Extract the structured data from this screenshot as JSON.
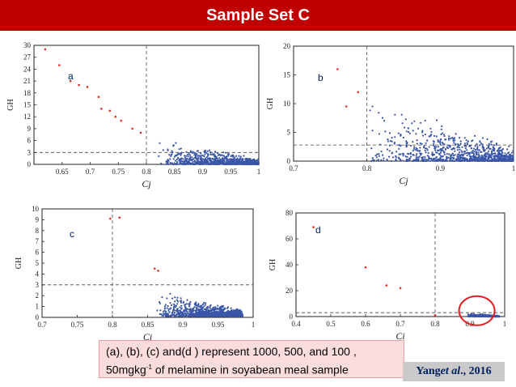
{
  "slide": {
    "title": "Sample Set C",
    "caption_line1": "(a), (b), (c) and(d ) represent 1000, 500, and 100 ,",
    "caption_line2_pre": "50mgkg",
    "caption_sup": "-1",
    "caption_line2_post": " of melamine in soyabean meal sample",
    "citation_prefix": "Yang ",
    "citation_italic": "et al",
    "citation_suffix": "., 2016",
    "accent_color": "#c00000",
    "point_color": "#3a56a8",
    "red_point_color": "#e03020",
    "highlight_circle_color": "#e02020"
  },
  "chart_data": [
    {
      "type": "scatter",
      "panel_label": "a",
      "xlabel": "Cj",
      "ylabel": "GH",
      "xlim": [
        0.6,
        1.0
      ],
      "ylim": [
        0,
        30
      ],
      "xticks": [
        "0.65",
        "0.7",
        "0.75",
        "0.8",
        "0.85",
        "0.9",
        "0.95",
        "1"
      ],
      "xtick_values": [
        0.65,
        0.7,
        0.75,
        0.8,
        0.85,
        0.9,
        0.95,
        1.0
      ],
      "yticks": [
        "0",
        "3",
        "6",
        "9",
        "12",
        "15",
        "18",
        "21",
        "24",
        "27",
        "30"
      ],
      "ytick_values": [
        0,
        3,
        6,
        9,
        12,
        15,
        18,
        21,
        24,
        27,
        30
      ],
      "threshold_x": 0.8,
      "threshold_y": 3,
      "red_points": [
        [
          0.62,
          29
        ],
        [
          0.645,
          25
        ],
        [
          0.665,
          21
        ],
        [
          0.68,
          20
        ],
        [
          0.695,
          19.5
        ],
        [
          0.715,
          17
        ],
        [
          0.72,
          14
        ],
        [
          0.735,
          13.5
        ],
        [
          0.745,
          12
        ],
        [
          0.755,
          11
        ],
        [
          0.775,
          9
        ],
        [
          0.79,
          8
        ]
      ],
      "cluster": {
        "x_range": [
          0.82,
          1.0
        ],
        "y_range": [
          0,
          7
        ],
        "count": 900,
        "seed": 11
      }
    },
    {
      "type": "scatter",
      "panel_label": "b",
      "xlabel": "Cj",
      "ylabel": "GH",
      "xlim": [
        0.7,
        1.0
      ],
      "ylim": [
        0,
        20
      ],
      "xticks": [
        "0.7",
        "0.8",
        "0.9",
        "1"
      ],
      "xtick_values": [
        0.7,
        0.8,
        0.9,
        1.0
      ],
      "yticks": [
        "0",
        "5",
        "10",
        "15",
        "20"
      ],
      "ytick_values": [
        0,
        5,
        10,
        15,
        20
      ],
      "threshold_x": 0.8,
      "threshold_y": 2.8,
      "red_points": [
        [
          0.76,
          16
        ],
        [
          0.772,
          9.5
        ],
        [
          0.788,
          12
        ]
      ],
      "cluster": {
        "x_range": [
          0.8,
          1.0
        ],
        "y_range": [
          0,
          12
        ],
        "count": 900,
        "seed": 23
      }
    },
    {
      "type": "scatter",
      "panel_label": "c",
      "xlabel": "Ci",
      "ylabel": "GH",
      "xlim": [
        0.7,
        1.0
      ],
      "ylim": [
        0,
        10
      ],
      "xticks": [
        "0.7",
        "0.75",
        "0.8",
        "0.85",
        "0.9",
        "0.95",
        "1"
      ],
      "xtick_values": [
        0.7,
        0.75,
        0.8,
        0.85,
        0.9,
        0.95,
        1.0
      ],
      "yticks": [
        "0",
        "1",
        "2",
        "3",
        "4",
        "5",
        "6",
        "7",
        "8",
        "9",
        "10"
      ],
      "ytick_values": [
        0,
        1,
        2,
        3,
        4,
        5,
        6,
        7,
        8,
        9,
        10
      ],
      "threshold_x": 0.8,
      "threshold_y": 3,
      "red_points": [
        [
          0.797,
          9.1
        ],
        [
          0.81,
          9.2
        ],
        [
          0.86,
          4.5
        ],
        [
          0.865,
          4.3
        ]
      ],
      "cluster": {
        "x_range": [
          0.86,
          0.985
        ],
        "y_range": [
          0.1,
          2.8
        ],
        "count": 1100,
        "seed": 37
      }
    },
    {
      "type": "scatter",
      "panel_label": "d",
      "xlabel": "Ci",
      "ylabel": "GH",
      "xlim": [
        0.4,
        1.0
      ],
      "ylim": [
        0,
        80
      ],
      "xticks": [
        "0.4",
        "0.5",
        "0.6",
        "0.7",
        "0.8",
        "0.9",
        "1"
      ],
      "xtick_values": [
        0.4,
        0.5,
        0.6,
        0.7,
        0.8,
        0.9,
        1.0
      ],
      "yticks": [
        "0",
        "20",
        "40",
        "60",
        "80"
      ],
      "ytick_values": [
        0,
        20,
        40,
        60,
        80
      ],
      "threshold_x": 0.8,
      "threshold_y": 3,
      "red_points": [
        [
          0.45,
          69
        ],
        [
          0.6,
          38
        ],
        [
          0.66,
          24
        ],
        [
          0.7,
          22
        ],
        [
          0.8,
          1
        ]
      ],
      "cluster": {
        "x_range": [
          0.89,
          0.985
        ],
        "y_range": [
          0,
          3
        ],
        "count": 500,
        "seed": 51
      },
      "highlight": {
        "x": 0.92,
        "y": 2
      }
    }
  ]
}
